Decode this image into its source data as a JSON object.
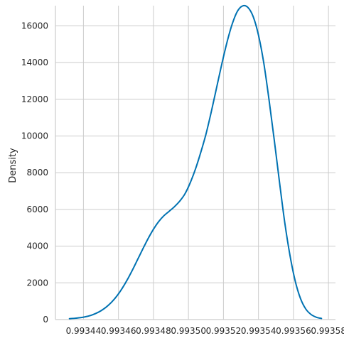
{
  "chart_data": {
    "type": "line",
    "title": "",
    "xlabel": "",
    "ylabel": "Density",
    "xlim": [
      0.993424,
      0.993584
    ],
    "ylim": [
      0,
      17100
    ],
    "grid": true,
    "legend": "none",
    "line_color": "#0072b2",
    "grid_color": "#cccccc",
    "x_ticks": [
      0.99344,
      0.99346,
      0.99348,
      0.9935,
      0.99352,
      0.99354,
      0.99356,
      0.99358
    ],
    "x_tick_labels": [
      "0.99344",
      "0.99346",
      "0.99348",
      "0.99350",
      "0.99352",
      "0.99354",
      "0.99356",
      "0.99358"
    ],
    "y_ticks": [
      0,
      2000,
      4000,
      6000,
      8000,
      10000,
      12000,
      14000,
      16000
    ],
    "y_tick_labels": [
      "0",
      "2000",
      "4000",
      "6000",
      "8000",
      "10000",
      "12000",
      "14000",
      "16000"
    ],
    "series": [
      {
        "x": [
          0.993432,
          0.993435,
          0.993438,
          0.993441,
          0.993444,
          0.993447,
          0.99345,
          0.993453,
          0.993456,
          0.993459,
          0.993462,
          0.993465,
          0.993468,
          0.993471,
          0.993474,
          0.993477,
          0.99348,
          0.993483,
          0.993486,
          0.993489,
          0.993492,
          0.993495,
          0.993498,
          0.993501,
          0.993504,
          0.993507,
          0.99351,
          0.993513,
          0.993516,
          0.993519,
          0.993522,
          0.993525,
          0.993528,
          0.993531,
          0.993534,
          0.993537,
          0.99354,
          0.993543,
          0.993546,
          0.993549,
          0.993552,
          0.993555,
          0.993558,
          0.993561,
          0.993564,
          0.993567,
          0.99357,
          0.993573,
          0.993576
        ],
        "y": [
          50,
          70,
          100,
          150,
          220,
          330,
          480,
          680,
          940,
          1270,
          1680,
          2160,
          2700,
          3280,
          3860,
          4420,
          4920,
          5340,
          5660,
          5900,
          6150,
          6450,
          6850,
          7450,
          8200,
          9100,
          10100,
          11300,
          12600,
          13900,
          15100,
          16100,
          16800,
          17090,
          17000,
          16500,
          15500,
          14000,
          12000,
          9800,
          7500,
          5300,
          3500,
          2100,
          1150,
          580,
          280,
          130,
          60
        ]
      }
    ]
  }
}
